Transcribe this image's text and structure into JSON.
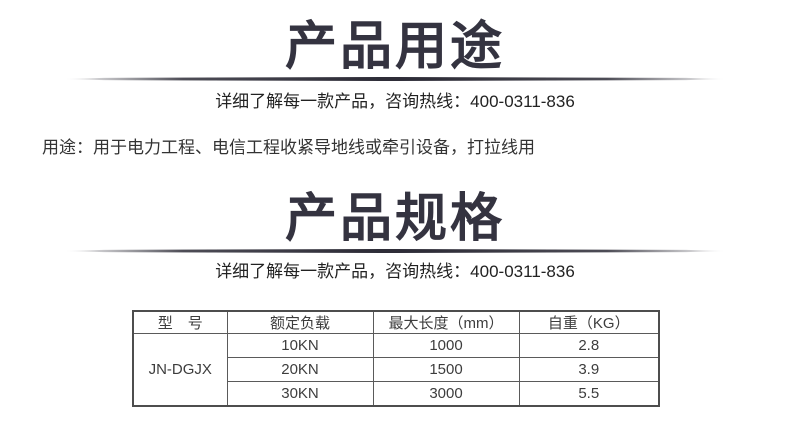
{
  "page": {
    "background": "#ffffff"
  },
  "colors": {
    "title": "#343340",
    "divider": "#2e2d38",
    "subtitle_text": "#222222",
    "body_text": "#333333",
    "table_text": "#3d3d3d",
    "table_border": "#4d4d4d"
  },
  "usage_section": {
    "title": "产品用途",
    "subtitle": "详细了解每一款产品，咨询热线：400-0311-836",
    "hotline": "400-0311-836",
    "usage_text": "用途：用于电力工程、电信工程收紧导地线或牵引设备，打拉线用"
  },
  "spec_section": {
    "title": "产品规格",
    "subtitle": "详细了解每一款产品，咨询热线：400-0311-836",
    "hotline": "400-0311-836"
  },
  "spec_table": {
    "headers": [
      "型　号",
      "额定负载",
      "最大长度（mm）",
      "自重（KG）"
    ],
    "model": "JN-DGJX",
    "rows": [
      {
        "rated_load": "10KN",
        "max_length_mm": "1000",
        "weight_kg": "2.8"
      },
      {
        "rated_load": "20KN",
        "max_length_mm": "1500",
        "weight_kg": "3.9"
      },
      {
        "rated_load": "30KN",
        "max_length_mm": "3000",
        "weight_kg": "5.5"
      }
    ]
  }
}
